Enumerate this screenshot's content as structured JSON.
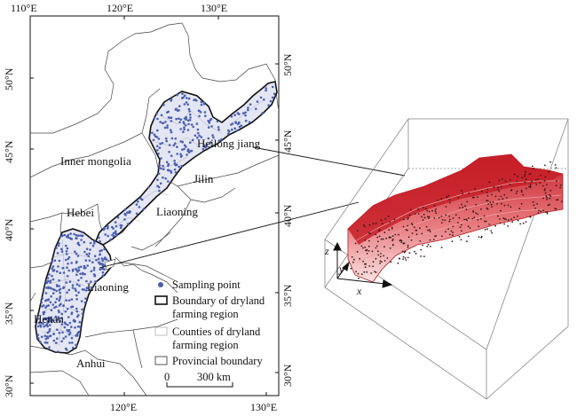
{
  "map": {
    "lon_labels_top": [
      "110°E",
      "120°E",
      "130°E"
    ],
    "lon_labels_bottom": [
      "120°E",
      "130°E"
    ],
    "lat_labels_left": [
      "50°N",
      "45°N",
      "40°N",
      "35°N",
      "30°N"
    ],
    "lat_labels_right": [
      "50°N",
      "45°N",
      "40°N",
      "35°N",
      "30°N"
    ],
    "places": {
      "inner_mongolia": "Inner mongolia",
      "heilongjiang": "Heilong jiang",
      "jilin": "Jilin",
      "liaoning_north": "Liaoning",
      "hebei": "Hebei",
      "liaoning_south": "Liaoning",
      "henan": "Henan",
      "anhui": "Anhui"
    },
    "legend": {
      "sampling_point": "Sampling point",
      "boundary_line1": "Boundary of dryland",
      "boundary_line2": "farming region",
      "counties_line1": "Counties of dryland",
      "counties_line2": "farming region",
      "provincial": "Provincial boundary"
    },
    "scalebar": {
      "zero": "0",
      "distance": "300 km"
    },
    "colors": {
      "point": "#4a5fb0",
      "region_fill": "#e4e6f4",
      "outline": "#111111"
    }
  },
  "block3d": {
    "axis_labels": {
      "z": "z",
      "y": "y",
      "x": "x"
    },
    "colors": {
      "top": "#c71f28",
      "side_light": "#f4c8c8",
      "box": "#888888"
    }
  }
}
